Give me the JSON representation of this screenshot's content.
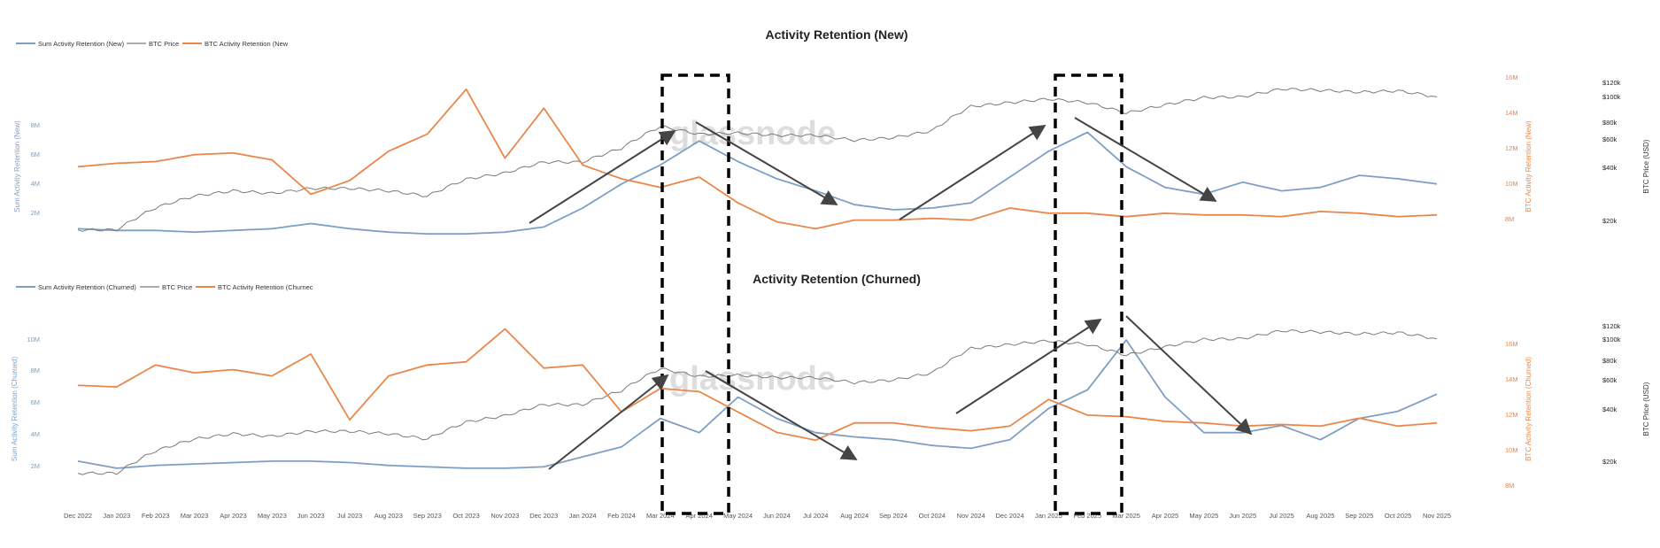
{
  "colors": {
    "blue": "#7e9fc4",
    "gray": "#7a7a7a",
    "orange": "#e9874a",
    "ink": "#333333"
  },
  "watermark": "glassnode",
  "x_labels": [
    "Dec 2022",
    "Jan 2023",
    "Feb 2023",
    "Mar 2023",
    "Apr 2023",
    "May 2023",
    "Jun 2023",
    "Jul 2023",
    "Aug 2023",
    "Sep 2023",
    "Oct 2023",
    "Nov 2023",
    "Dec 2023",
    "Jan 2024",
    "Feb 2024",
    "Mar 2024",
    "Apr 2024",
    "May 2024",
    "Jun 2024",
    "Jul 2024",
    "Aug 2024",
    "Sep 2024",
    "Oct 2024",
    "Nov 2024",
    "Dec 2024",
    "Jan 2025",
    "Feb 2025",
    "Mar 2025",
    "Apr 2025",
    "May 2025",
    "Jun 2025",
    "Jul 2025",
    "Aug 2025",
    "Sep 2025",
    "Oct 2025",
    "Nov 2025"
  ],
  "chart_data": [
    {
      "type": "line",
      "title": "Activity Retention (New)",
      "x": [
        "Dec 2022",
        "Jan 2023",
        "Feb 2023",
        "Mar 2023",
        "Apr 2023",
        "May 2023",
        "Jun 2023",
        "Jul 2023",
        "Aug 2023",
        "Sep 2023",
        "Oct 2023",
        "Nov 2023",
        "Dec 2023",
        "Jan 2024",
        "Feb 2024",
        "Mar 2024",
        "Apr 2024",
        "May 2024",
        "Jun 2024",
        "Jul 2024",
        "Aug 2024",
        "Sep 2024",
        "Oct 2024",
        "Nov 2024",
        "Dec 2024",
        "Jan 2025",
        "Feb 2025",
        "Mar 2025",
        "Apr 2025",
        "May 2025",
        "Jun 2025",
        "Jul 2025",
        "Aug 2025",
        "Sep 2025",
        "Oct 2025",
        "Nov 2025"
      ],
      "legend": [
        "Sum Activity Retention (New)",
        "BTC Price",
        "BTC Activity Retention (New"
      ],
      "left_axis": {
        "label": "Sum Activity Retention (New)",
        "ticks": [
          "2M",
          "4M",
          "6M",
          "8M"
        ],
        "ylim": [
          0,
          9
        ]
      },
      "right_axis": {
        "label": "BTC Activity Retention (New)",
        "ticks": [
          "8M",
          "10M",
          "12M",
          "14M",
          "16M"
        ],
        "ylim": [
          7,
          16
        ]
      },
      "price_axis": {
        "label": "BTC Price (USD)",
        "ticks": [
          "$20k",
          "$40k",
          "$60k",
          "$80k",
          "$100k",
          "$120k"
        ]
      },
      "series": [
        {
          "name": "Sum Activity Retention (New)",
          "axis": "left",
          "values": [
            0.6,
            0.5,
            0.5,
            0.4,
            0.5,
            0.6,
            0.9,
            0.6,
            0.4,
            0.3,
            0.3,
            0.4,
            0.7,
            1.8,
            3.2,
            4.3,
            5.7,
            4.5,
            3.5,
            2.8,
            2.0,
            1.7,
            1.8,
            2.1,
            3.6,
            5.1,
            6.2,
            4.2,
            3.0,
            2.6,
            3.3,
            2.8,
            3.0,
            3.7,
            3.5,
            3.2
          ]
        },
        {
          "name": "BTC Price",
          "axis": "price",
          "values": [
            17,
            17,
            23,
            27,
            29,
            28,
            30,
            30,
            29,
            27,
            34,
            37,
            43,
            43,
            52,
            70,
            63,
            64,
            62,
            62,
            58,
            60,
            66,
            92,
            97,
            102,
            97,
            84,
            94,
            104,
            105,
            117,
            115,
            112,
            114,
            105
          ]
        },
        {
          "name": "BTC Activity Retention (New",
          "axis": "right",
          "values": [
            11.2,
            11.4,
            11.5,
            11.9,
            12.0,
            11.6,
            9.6,
            10.4,
            12.1,
            13.1,
            15.7,
            11.7,
            14.6,
            11.3,
            10.5,
            10.0,
            10.6,
            9.1,
            8.0,
            7.6,
            8.1,
            8.1,
            8.2,
            8.1,
            8.8,
            8.5,
            8.5,
            8.3,
            8.5,
            8.4,
            8.4,
            8.3,
            8.6,
            8.5,
            8.3,
            8.4
          ]
        }
      ]
    },
    {
      "type": "line",
      "title": "Activity Retention (Churned)",
      "x": [
        "Dec 2022",
        "Jan 2023",
        "Feb 2023",
        "Mar 2023",
        "Apr 2023",
        "May 2023",
        "Jun 2023",
        "Jul 2023",
        "Aug 2023",
        "Sep 2023",
        "Oct 2023",
        "Nov 2023",
        "Dec 2023",
        "Jan 2024",
        "Feb 2024",
        "Mar 2024",
        "Apr 2024",
        "May 2024",
        "Jun 2024",
        "Jul 2024",
        "Aug 2024",
        "Sep 2024",
        "Oct 2024",
        "Nov 2024",
        "Dec 2024",
        "Jan 2025",
        "Feb 2025",
        "Mar 2025",
        "Apr 2025",
        "May 2025",
        "Jun 2025",
        "Jul 2025",
        "Aug 2025",
        "Sep 2025",
        "Oct 2025",
        "Nov 2025"
      ],
      "legend": [
        "Sum Activity Retention (Churned)",
        "BTC Price",
        "BTC Activity Retention (Churnec"
      ],
      "left_axis": {
        "label": "Sum Activity Retention (Churned)",
        "ticks": [
          "2M",
          "4M",
          "6M",
          "8M",
          "10M"
        ],
        "ylim": [
          0,
          11
        ]
      },
      "right_axis": {
        "label": "BTC Activity Retention (Churned)",
        "ticks": [
          "8M",
          "10M",
          "12M",
          "14M",
          "16M"
        ],
        "ylim": [
          7,
          17
        ]
      },
      "price_axis": {
        "label": "BTC Price (USD)",
        "ticks": [
          "$20k",
          "$40k",
          "$60k",
          "$80k",
          "$100k",
          "$120k"
        ]
      },
      "series": [
        {
          "name": "Sum Activity Retention (Churned)",
          "axis": "left",
          "values": [
            1.5,
            1.0,
            1.2,
            1.3,
            1.4,
            1.5,
            1.5,
            1.4,
            1.2,
            1.1,
            1.0,
            1.0,
            1.1,
            1.8,
            2.5,
            4.5,
            3.5,
            6.0,
            4.5,
            3.5,
            3.2,
            3.0,
            2.6,
            2.4,
            3.0,
            5.2,
            6.5,
            10.0,
            6.0,
            3.5,
            3.5,
            4.0,
            3.0,
            4.5,
            5.0,
            6.2
          ]
        },
        {
          "name": "BTC Price",
          "axis": "price",
          "values": [
            17,
            17,
            23,
            27,
            29,
            28,
            30,
            30,
            29,
            27,
            34,
            37,
            43,
            43,
            52,
            70,
            63,
            64,
            62,
            62,
            58,
            60,
            66,
            92,
            97,
            102,
            97,
            84,
            94,
            104,
            105,
            117,
            115,
            112,
            114,
            105
          ]
        },
        {
          "name": "BTC Activity Retention (Churnec",
          "axis": "right",
          "values": [
            13.2,
            13.1,
            14.5,
            14.0,
            14.2,
            13.8,
            15.2,
            11.0,
            13.8,
            14.5,
            14.7,
            16.8,
            14.3,
            14.5,
            11.5,
            13.0,
            12.8,
            11.5,
            10.2,
            9.7,
            10.8,
            10.8,
            10.5,
            10.3,
            10.6,
            12.3,
            11.3,
            11.2,
            10.9,
            10.8,
            10.6,
            10.7,
            10.6,
            11.1,
            10.6,
            10.8
          ]
        }
      ]
    }
  ]
}
